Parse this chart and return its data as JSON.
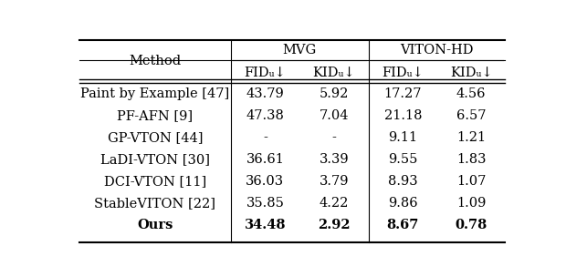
{
  "col_group_labels": [
    "MVG",
    "VITON-HD"
  ],
  "col_headers": [
    "Method",
    "FIDᵤ↓",
    "KIDᵤ↓",
    "FIDᵤ↓",
    "KIDᵤ↓"
  ],
  "rows": [
    [
      "Paint by Example [47]",
      "43.79",
      "5.92",
      "17.27",
      "4.56"
    ],
    [
      "PF-AFN [9]",
      "47.38",
      "7.04",
      "21.18",
      "6.57"
    ],
    [
      "GP-VTON [44]",
      "-",
      "-",
      "9.11",
      "1.21"
    ],
    [
      "LaDI-VTON [30]",
      "36.61",
      "3.39",
      "9.55",
      "1.83"
    ],
    [
      "DCI-VTON [11]",
      "36.03",
      "3.79",
      "8.93",
      "1.07"
    ],
    [
      "StableVITON [22]",
      "35.85",
      "4.22",
      "9.86",
      "1.09"
    ],
    [
      "Ours",
      "34.48",
      "2.92",
      "8.67",
      "0.78"
    ]
  ],
  "bold_row": 6,
  "bg_color": "#ffffff",
  "text_color": "#000000",
  "font_size": 10.5,
  "header_font_size": 10.5
}
